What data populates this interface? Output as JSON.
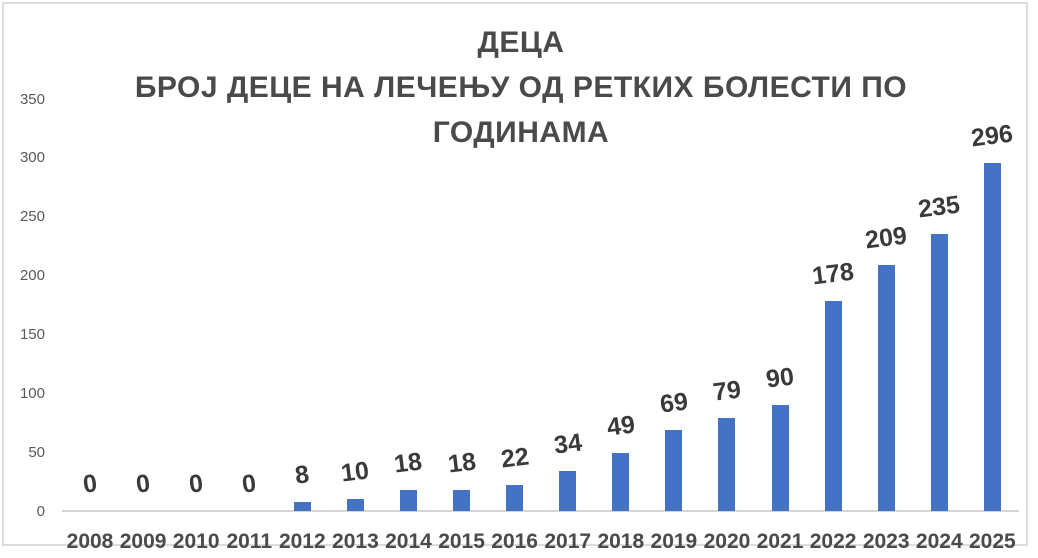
{
  "chart_data": {
    "type": "bar",
    "title": "ДЕЦА БРОЈ ДЕЦЕ НА ЛЕЧЕЊУ ОД РЕТКИХ БОЛЕСТИ ПО ГОДИНАМА",
    "title_lines": [
      "ДЕЦА",
      "БРОЈ ДЕЦЕ НА ЛЕЧЕЊУ ОД РЕТКИХ БОЛЕСТИ ПО",
      "ГОДИНАМА"
    ],
    "categories": [
      "2008",
      "2009",
      "2010",
      "2011",
      "2012",
      "2013",
      "2014",
      "2015",
      "2016",
      "2017",
      "2018",
      "2019",
      "2020",
      "2021",
      "2022",
      "2023",
      "2024",
      "2025"
    ],
    "values": [
      0,
      0,
      0,
      0,
      8,
      10,
      18,
      18,
      22,
      34,
      49,
      69,
      79,
      90,
      178,
      209,
      235,
      296
    ],
    "data_labels": [
      "0",
      "0",
      "0",
      "0",
      "8",
      "10",
      "18",
      "18",
      "22",
      "34",
      "49",
      "69",
      "79",
      "90",
      "178",
      "209",
      "235",
      "296"
    ],
    "y_ticks": [
      0,
      50,
      100,
      150,
      200,
      250,
      300,
      350
    ],
    "ylim": [
      0,
      350
    ],
    "xlabel": "",
    "ylabel": "",
    "grid": false,
    "legend": null,
    "colors": {
      "bar": "#4472C4",
      "title": "#4a4a4a",
      "data_label": "#3a3a3a",
      "x_tick": "#4a4a4a",
      "y_tick": "#595959",
      "axis_line": "#d4d4d4",
      "border": "#dcdcdc",
      "background": "#ffffff"
    }
  }
}
